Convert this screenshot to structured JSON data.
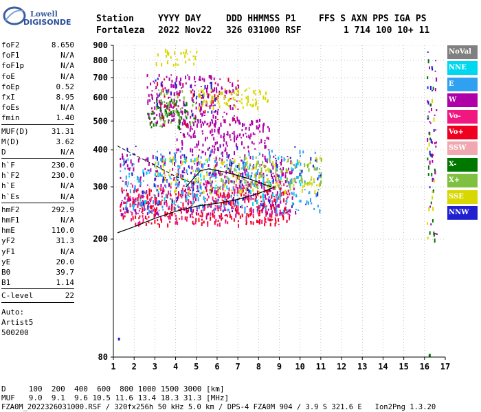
{
  "logo": {
    "line1": "Lowell",
    "line2": "DIGISONDE"
  },
  "header": {
    "row1": [
      "Station",
      "YYYY DAY",
      "DDD HHMMSS P1",
      "FFS S AXN PPS IGA PS"
    ],
    "row2": [
      "Fortaleza",
      "2022 Nov22",
      "326 031000 RSF",
      "1 714 100 10+ 11"
    ]
  },
  "params": {
    "group1": [
      {
        "name": "foF2",
        "value": "8.650"
      },
      {
        "name": "foF1",
        "value": "N/A"
      },
      {
        "name": "foF1p",
        "value": "N/A"
      },
      {
        "name": "foE",
        "value": "N/A"
      },
      {
        "name": "foEp",
        "value": "0.52"
      },
      {
        "name": "fxI",
        "value": "8.95"
      },
      {
        "name": "foEs",
        "value": "N/A"
      },
      {
        "name": "fmin",
        "value": "1.40"
      }
    ],
    "group2": [
      {
        "name": "MUF(D)",
        "value": "31.31"
      },
      {
        "name": "M(D)",
        "value": "3.62"
      },
      {
        "name": "D",
        "value": "N/A"
      }
    ],
    "group3": [
      {
        "name": "h`F",
        "value": "230.0"
      },
      {
        "name": "h`F2",
        "value": "230.0"
      },
      {
        "name": "h`E",
        "value": "N/A"
      },
      {
        "name": "h`Es",
        "value": "N/A"
      }
    ],
    "group4": [
      {
        "name": "hmF2",
        "value": "292.9"
      },
      {
        "name": "hmF1",
        "value": "N/A"
      },
      {
        "name": "hmE",
        "value": "110.0"
      },
      {
        "name": "yF2",
        "value": "31.3"
      },
      {
        "name": "yF1",
        "value": "N/A"
      },
      {
        "name": "yE",
        "value": "20.0"
      },
      {
        "name": "B0",
        "value": "39.7"
      },
      {
        "name": "B1",
        "value": "1.14"
      }
    ],
    "group5": [
      {
        "name": "C-level",
        "value": "22"
      }
    ],
    "auto": [
      "Auto:",
      "Artist5",
      "500200"
    ]
  },
  "legend": [
    {
      "label": "NoVal",
      "color": "#808080"
    },
    {
      "label": "NNE",
      "color": "#00d8f0"
    },
    {
      "label": "E",
      "color": "#30a0f0"
    },
    {
      "label": "W",
      "color": "#b000a8"
    },
    {
      "label": "Vo-",
      "color": "#f01880"
    },
    {
      "label": "Vo+",
      "color": "#f00020"
    },
    {
      "label": "SSW",
      "color": "#f0a8b0"
    },
    {
      "label": "X-",
      "color": "#007800"
    },
    {
      "label": "X+",
      "color": "#80c040"
    },
    {
      "label": "SSE",
      "color": "#d8d800"
    },
    {
      "label": "NNW",
      "color": "#2020d0"
    }
  ],
  "chart_data": {
    "type": "scatter",
    "title": "",
    "xlabel": "",
    "ylabel": "",
    "xlim": [
      1,
      17
    ],
    "ylim": [
      80,
      900
    ],
    "y_scale": "log",
    "x_ticks": [
      "1",
      "2",
      "3",
      "4",
      "5",
      "6",
      "7",
      "8",
      "9",
      "10",
      "11",
      "12",
      "13",
      "14",
      "15",
      "16",
      "17"
    ],
    "y_ticks": [
      "900",
      "800",
      "700",
      "600",
      "500",
      "400",
      "300",
      "200",
      "80"
    ],
    "y_tick_values": [
      900,
      800,
      700,
      600,
      500,
      400,
      300,
      200,
      80
    ],
    "grid": true,
    "profile_solid": [
      [
        1.2,
        210
      ],
      [
        2,
        220
      ],
      [
        3,
        235
      ],
      [
        4,
        248
      ],
      [
        5,
        258
      ],
      [
        6,
        264
      ],
      [
        7,
        272
      ],
      [
        8,
        285
      ],
      [
        8.8,
        300
      ]
    ],
    "profile_upper": [
      [
        4.5,
        300
      ],
      [
        5.2,
        340
      ],
      [
        5.6,
        345
      ],
      [
        6.5,
        335
      ],
      [
        7.5,
        320
      ],
      [
        8.6,
        300
      ]
    ],
    "profile_dashed": [
      [
        1.2,
        412
      ],
      [
        2,
        385
      ],
      [
        3,
        355
      ],
      [
        4,
        325
      ],
      [
        5,
        305
      ]
    ],
    "clusters": [
      {
        "series": "W",
        "x": [
          1.3,
          9.8
        ],
        "y": [
          240,
          390
        ],
        "n": 420
      },
      {
        "series": "Vo+",
        "x": [
          1.3,
          9.5
        ],
        "y": [
          225,
          300
        ],
        "n": 300
      },
      {
        "series": "Vo-",
        "x": [
          1.5,
          9.5
        ],
        "y": [
          225,
          320
        ],
        "n": 200
      },
      {
        "series": "E",
        "x": [
          1.3,
          11
        ],
        "y": [
          250,
          400
        ],
        "n": 260
      },
      {
        "series": "NNE",
        "x": [
          1.5,
          10.5
        ],
        "y": [
          260,
          380
        ],
        "n": 120
      },
      {
        "series": "SSE",
        "x": [
          3,
          11
        ],
        "y": [
          290,
          380
        ],
        "n": 150
      },
      {
        "series": "X+",
        "x": [
          6,
          11
        ],
        "y": [
          300,
          380
        ],
        "n": 80
      },
      {
        "series": "NNW",
        "x": [
          1.5,
          11
        ],
        "y": [
          250,
          420
        ],
        "n": 90
      },
      {
        "series": "W",
        "x": [
          4,
          8.5
        ],
        "y": [
          390,
          510
        ],
        "n": 170
      },
      {
        "series": "W",
        "x": [
          2.6,
          7
        ],
        "y": [
          490,
          720
        ],
        "n": 230
      },
      {
        "series": "SSE",
        "x": [
          5,
          8.5
        ],
        "y": [
          560,
          650
        ],
        "n": 90
      },
      {
        "series": "X-",
        "x": [
          2.6,
          5
        ],
        "y": [
          480,
          600
        ],
        "n": 60
      },
      {
        "series": "SSE",
        "x": [
          3,
          5
        ],
        "y": [
          780,
          880
        ],
        "n": 30
      },
      {
        "series": "X+",
        "x": [
          3,
          5
        ],
        "y": [
          480,
          640
        ],
        "n": 40
      },
      {
        "series": "Vo+",
        "x": [
          2.5,
          7
        ],
        "y": [
          480,
          700
        ],
        "n": 40
      },
      {
        "series": "NNW",
        "x": [
          3,
          6
        ],
        "y": [
          500,
          700
        ],
        "n": 30
      },
      {
        "series": "W",
        "x": [
          16.1,
          16.6
        ],
        "y": [
          200,
          900
        ],
        "n": 35
      },
      {
        "series": "X-",
        "x": [
          16.1,
          16.5
        ],
        "y": [
          200,
          900
        ],
        "n": 20
      },
      {
        "series": "NNW",
        "x": [
          16.1,
          16.5
        ],
        "y": [
          300,
          900
        ],
        "n": 15
      },
      {
        "series": "SSE",
        "x": [
          16.1,
          16.5
        ],
        "y": [
          200,
          600
        ],
        "n": 12
      }
    ]
  },
  "footer": {
    "line1": "D     100  200  400  600  800 1000 1500 3000 [km]",
    "line2": "MUF   9.0  9.1  9.6 10.5 11.6 13.4 18.3 31.3 [MHz]",
    "line3": "FZA0M_2022326031000.RSF / 320fx256h 50 kHz 5.0 km / DPS-4 FZA0M 904 / 3.9 S 321.6 E   Ion2Png 1.3.20"
  }
}
